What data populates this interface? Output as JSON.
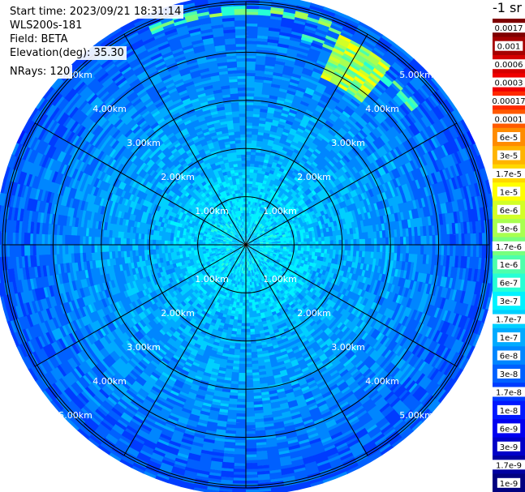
{
  "info": {
    "start_time": "Start time: 2023/09/21 18:31:14",
    "instrument": "WLS200s-181",
    "field": "Field: BETA",
    "elevation": "Elevation(deg): 35.30",
    "nrays": "NRays: 120"
  },
  "chart_data": {
    "type": "heatmap",
    "projection": "polar",
    "range_rings_km": [
      1,
      2,
      3,
      4,
      5
    ],
    "ring_labels": [
      "1.00km",
      "2.00km",
      "3.00km",
      "4.00km",
      "5.00km"
    ],
    "max_range_km": 5.0,
    "radial_spokes_deg": [
      0,
      30,
      60,
      90,
      120,
      150,
      180,
      210,
      240,
      270,
      300,
      330
    ],
    "nrays": 120,
    "colorbar_unit": "-1 sr",
    "colorbar_labels": [
      "0.0017",
      "0.001",
      "0.0006",
      "0.0003",
      "0.00017",
      "0.0001",
      "6e-5",
      "3e-5",
      "1.7e-5",
      "1e-5",
      "6e-6",
      "3e-6",
      "1.7e-6",
      "1e-6",
      "6e-7",
      "3e-7",
      "1.7e-7",
      "1e-7",
      "6e-8",
      "3e-8",
      "1.7e-8",
      "1e-8",
      "6e-9",
      "3e-9",
      "1.7e-9",
      "1e-9"
    ],
    "colorbar_colors": [
      "#7f0000",
      "#a50000",
      "#d40000",
      "#f00000",
      "#ff2a00",
      "#ff5a00",
      "#ff8c00",
      "#ffb400",
      "#ffd800",
      "#ffff00",
      "#d2ff26",
      "#a8ff50",
      "#78ff7e",
      "#4dffab",
      "#26ffd5",
      "#00f2ff",
      "#00d0ff",
      "#00aaff",
      "#0086ff",
      "#0060ff",
      "#003cff",
      "#0018ff",
      "#0000f0",
      "#0000c8",
      "#0000a0",
      "#000080"
    ],
    "description_bins": {
      "inner_km": "0-1.5 mostly 1e-7 to 3e-7 (cyan)",
      "mid_km": "1.5-3.5 mostly 6e-8 to 1.7e-7",
      "outer_km": "3.5-5 mostly 1.7e-8 to 6e-8",
      "hotspot_az_deg": 32,
      "hotspot_range_km": 4.3
    }
  }
}
